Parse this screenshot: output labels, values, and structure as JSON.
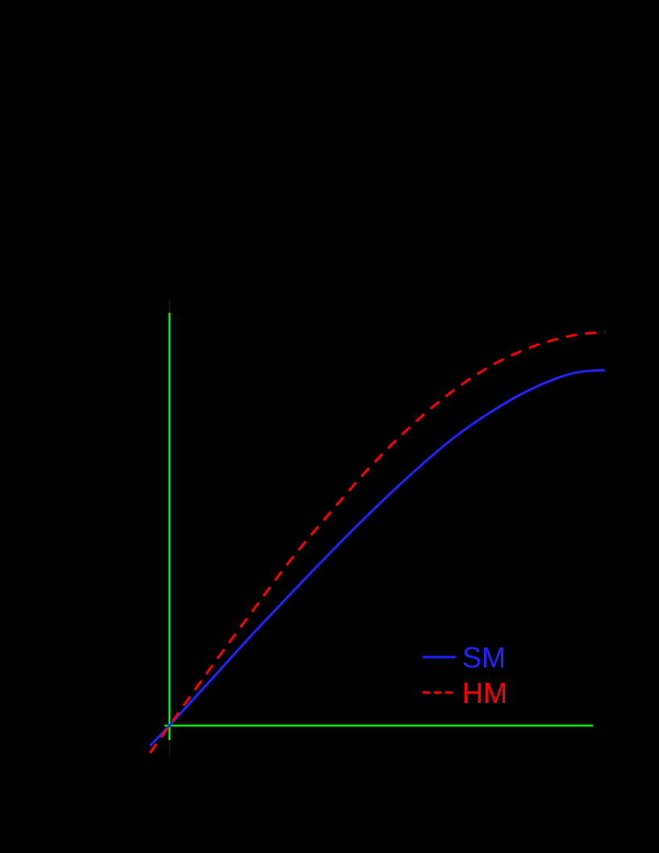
{
  "chart_data": {
    "type": "line",
    "title": "",
    "xlabel": "",
    "ylabel": "",
    "background": "#000000",
    "grid": false,
    "legend_position": "lower right (inside plot)",
    "notes": "Axis ticks/labels are not visible (rendered black on black). Values are pixel-derived estimates in screen units relative to the green origin at pixel (210, 900); y increases upward.",
    "reference_lines": [
      {
        "name": "vertical-zero-line",
        "orientation": "vertical",
        "x": 0,
        "color": "#00ee00"
      },
      {
        "name": "horizontal-zero-line",
        "orientation": "horizontal",
        "y": 0,
        "color": "#00ee00"
      }
    ],
    "x": [
      -24,
      0,
      50,
      100,
      150,
      200,
      250,
      300,
      350,
      400,
      450,
      500,
      540
    ],
    "series": [
      {
        "name": "SM",
        "color": "#2222ff",
        "style": "solid",
        "values": [
          -25,
          0,
          55,
          110,
          163,
          215,
          265,
          312,
          355,
          390,
          418,
          437,
          441
        ]
      },
      {
        "name": "HM",
        "color": "#ff0000",
        "style": "dashed",
        "values": [
          -34,
          0,
          70,
          138,
          205,
          265,
          322,
          372,
          414,
          447,
          470,
          484,
          488
        ]
      }
    ],
    "xlim": [
      -24,
      540
    ],
    "ylim": [
      -35,
      530
    ]
  },
  "legend": {
    "items": [
      {
        "label": "SM",
        "color": "#2222ff",
        "style": "solid"
      },
      {
        "label": "HM",
        "color": "#ff0000",
        "style": "dashed"
      }
    ]
  }
}
